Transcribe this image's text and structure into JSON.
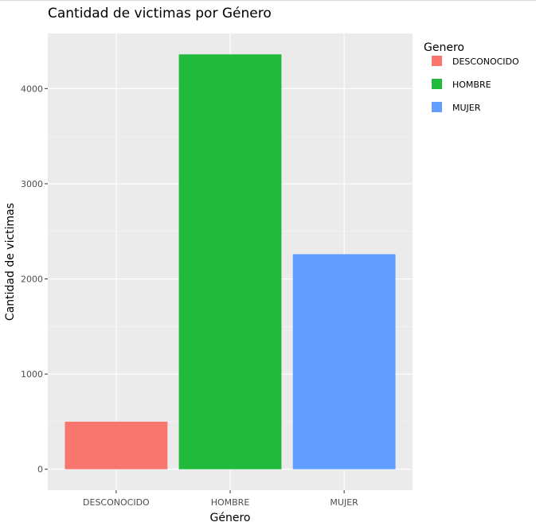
{
  "chart_data": {
    "type": "bar",
    "title": "Cantidad de victimas por Género",
    "xlabel": "Género",
    "ylabel": "Cantidad de victimas",
    "categories": [
      "DESCONOCIDO",
      "HOMBRE",
      "MUJER"
    ],
    "values": [
      500,
      4360,
      2260
    ],
    "colors": [
      "#F8766D",
      "#21BA3C",
      "#619CFF"
    ],
    "ylim": [
      -220,
      4580
    ],
    "yticks": [
      0,
      1000,
      2000,
      3000,
      4000
    ],
    "ytick_labels": [
      "0",
      "1000",
      "2000",
      "3000",
      "4000"
    ],
    "grid": true,
    "legend": {
      "title": "Genero",
      "position": "right",
      "entries": [
        "DESCONOCIDO",
        "HOMBRE",
        "MUJER"
      ]
    }
  }
}
